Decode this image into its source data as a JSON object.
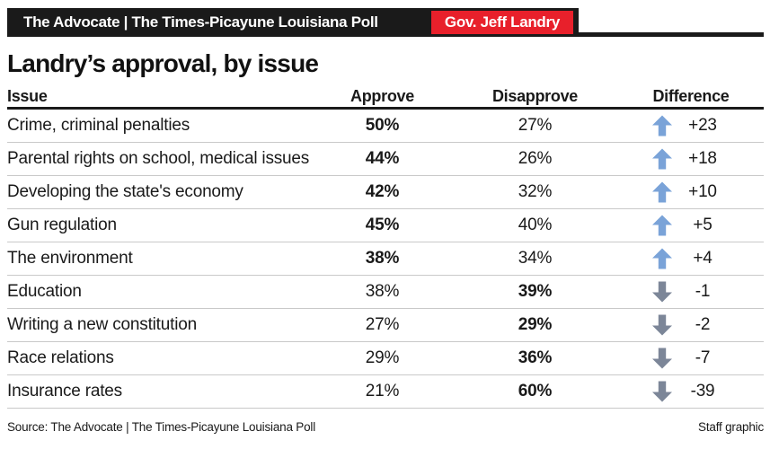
{
  "masthead": {
    "bar_title": "The Advocate | The Times-Picayune Louisiana Poll",
    "badge": "Gov. Jeff Landry"
  },
  "title": "Landry’s approval, by issue",
  "colors": {
    "bar_black": "#1a1a1a",
    "badge_red": "#e8202b",
    "up_arrow": "#7aa3d8",
    "down_arrow": "#7c8698",
    "separator": "#c9c9c9"
  },
  "table": {
    "headers": {
      "issue": "Issue",
      "approve": "Approve",
      "disapprove": "Disapprove",
      "difference": "Difference"
    },
    "rows": [
      {
        "issue": "Crime, criminal penalties",
        "approve": "50%",
        "disapprove": "27%",
        "difference": "+23",
        "direction": "up",
        "leader": "approve"
      },
      {
        "issue": "Parental rights on school, medical issues",
        "approve": "44%",
        "disapprove": "26%",
        "difference": "+18",
        "direction": "up",
        "leader": "approve"
      },
      {
        "issue": "Developing the state's economy",
        "approve": "42%",
        "disapprove": "32%",
        "difference": "+10",
        "direction": "up",
        "leader": "approve"
      },
      {
        "issue": "Gun regulation",
        "approve": "45%",
        "disapprove": "40%",
        "difference": "+5",
        "direction": "up",
        "leader": "approve"
      },
      {
        "issue": "The environment",
        "approve": "38%",
        "disapprove": "34%",
        "difference": "+4",
        "direction": "up",
        "leader": "approve"
      },
      {
        "issue": "Education",
        "approve": "38%",
        "disapprove": "39%",
        "difference": "-1",
        "direction": "down",
        "leader": "disapprove"
      },
      {
        "issue": "Writing a new constitution",
        "approve": "27%",
        "disapprove": "29%",
        "difference": "-2",
        "direction": "down",
        "leader": "disapprove"
      },
      {
        "issue": "Race relations",
        "approve": "29%",
        "disapprove": "36%",
        "difference": "-7",
        "direction": "down",
        "leader": "disapprove"
      },
      {
        "issue": "Insurance rates",
        "approve": "21%",
        "disapprove": "60%",
        "difference": "-39",
        "direction": "down",
        "leader": "disapprove"
      }
    ]
  },
  "footer": {
    "source": "Source: The Advocate | The Times-Picayune Louisiana Poll",
    "credit": "Staff graphic"
  },
  "chart_data": {
    "type": "table",
    "title": "Landry’s approval, by issue",
    "categories": [
      "Crime, criminal penalties",
      "Parental rights on school, medical issues",
      "Developing the state's economy",
      "Gun regulation",
      "The environment",
      "Education",
      "Writing a new constitution",
      "Race relations",
      "Insurance rates"
    ],
    "series": [
      {
        "name": "Approve (%)",
        "values": [
          50,
          44,
          42,
          45,
          38,
          38,
          27,
          29,
          21
        ]
      },
      {
        "name": "Disapprove (%)",
        "values": [
          27,
          26,
          32,
          40,
          34,
          39,
          29,
          36,
          60
        ]
      },
      {
        "name": "Difference",
        "values": [
          23,
          18,
          10,
          5,
          4,
          -1,
          -2,
          -7,
          -39
        ]
      }
    ],
    "legend_position": "none",
    "grid": false
  }
}
